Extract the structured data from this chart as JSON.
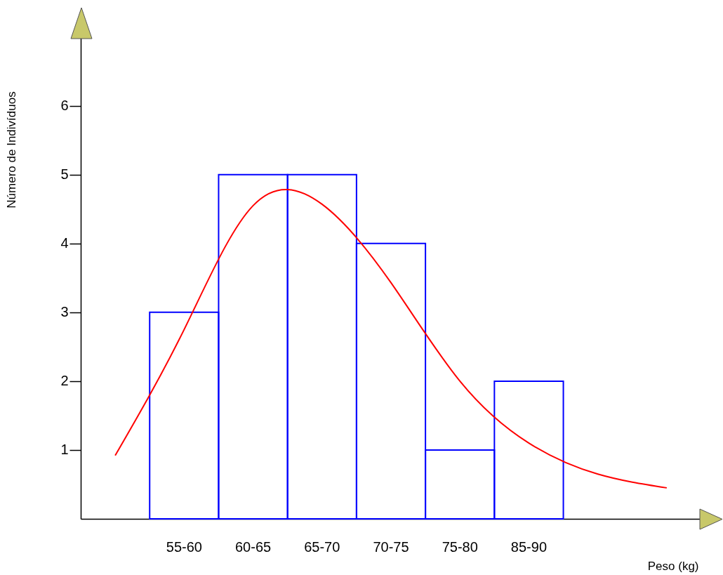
{
  "chart_data": {
    "type": "bar",
    "xlabel": "Peso (kg)",
    "ylabel": "Número de Indivíduos",
    "categories": [
      null,
      "55-60",
      "60-65",
      "65-70",
      "70-75",
      "75-80",
      "85-90",
      null,
      null
    ],
    "ylim": [
      0,
      7.2
    ],
    "yticks": [
      1,
      2,
      3,
      4,
      5,
      6
    ],
    "series": [
      {
        "color": "#0000ff",
        "values": [
          null,
          3,
          5,
          5,
          4,
          1,
          2,
          null,
          null
        ]
      },
      {
        "type": "line",
        "color": "#ff0000",
        "values": [
          0.92,
          2.75,
          4.55,
          4.57,
          3.43,
          2.0,
          1.1,
          0.65,
          0.45
        ]
      }
    ]
  }
}
